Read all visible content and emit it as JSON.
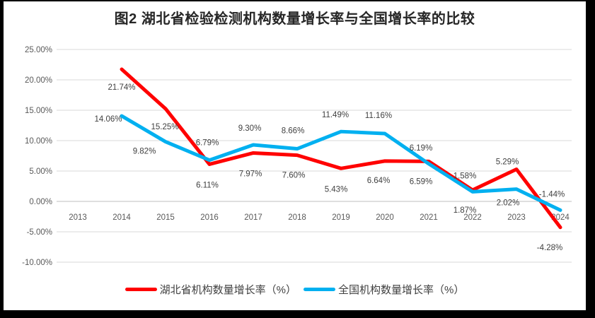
{
  "chart_data": {
    "type": "line",
    "title": "图2  湖北省检验检测机构数量增长率与全国增长率的比较",
    "x_categories": [
      "2013",
      "2014",
      "2015",
      "2016",
      "2017",
      "2018",
      "2019",
      "2020",
      "2021",
      "2022",
      "2023",
      "2024"
    ],
    "y_axis": {
      "ticks": [
        {
          "label": "25.00%",
          "value": 25
        },
        {
          "label": "20.00%",
          "value": 20
        },
        {
          "label": "15.00%",
          "value": 15
        },
        {
          "label": "10.00%",
          "value": 10
        },
        {
          "label": "5.00%",
          "value": 5
        },
        {
          "label": "0.00%",
          "value": 0
        },
        {
          "label": "-5.00%",
          "value": -5
        },
        {
          "label": "-10.00%",
          "value": -10
        }
      ]
    },
    "ylim": [
      -10,
      25
    ],
    "grid": true,
    "legend_position": "bottom",
    "series": [
      {
        "name": "湖北省机构数量增长率（%）",
        "color": "#FF0000",
        "points": [
          {
            "category": "2014",
            "value": 21.74,
            "label": "21.74%",
            "label_dx": 0,
            "label_dy": 25
          },
          {
            "category": "2015",
            "value": 15.25,
            "label": "15.25%",
            "label_dx": -1,
            "label_dy": 25
          },
          {
            "category": "2016",
            "value": 6.11,
            "label": "6.11%",
            "label_dx": -3,
            "label_dy": 29
          },
          {
            "category": "2017",
            "value": 7.97,
            "label": "7.97%",
            "label_dx": -4,
            "label_dy": 29
          },
          {
            "category": "2018",
            "value": 7.6,
            "label": "7.60%",
            "label_dx": -5,
            "label_dy": 28
          },
          {
            "category": "2019",
            "value": 5.43,
            "label": "5.43%",
            "label_dx": -7,
            "label_dy": 29
          },
          {
            "category": "2020",
            "value": 6.64,
            "label": "6.64%",
            "label_dx": -9,
            "label_dy": 27
          },
          {
            "category": "2021",
            "value": 6.59,
            "label": "6.59%",
            "label_dx": -11,
            "label_dy": 28
          },
          {
            "category": "2022",
            "value": 1.87,
            "label": "1.87%",
            "label_dx": -11,
            "label_dy": 28
          },
          {
            "category": "2023",
            "value": 5.29,
            "label": "5.29%",
            "label_dx": -13,
            "label_dy": -11
          },
          {
            "category": "2024",
            "value": -4.28,
            "label": "-4.28%",
            "label_dx": -15,
            "label_dy": 28
          }
        ]
      },
      {
        "name": "全国机构数量增长率（%）",
        "color": "#00B0F0",
        "points": [
          {
            "category": "2014",
            "value": 14.06,
            "label": "14.06%",
            "label_dx": -19,
            "label_dy": 4
          },
          {
            "category": "2015",
            "value": 9.82,
            "label": "9.82%",
            "label_dx": -30,
            "label_dy": 13
          },
          {
            "category": "2016",
            "value": 6.79,
            "label": "6.79%",
            "label_dx": -3,
            "label_dy": -25
          },
          {
            "category": "2017",
            "value": 9.3,
            "label": "9.30%",
            "label_dx": -5,
            "label_dy": -24
          },
          {
            "category": "2018",
            "value": 8.66,
            "label": "8.66%",
            "label_dx": -6,
            "label_dy": -26
          },
          {
            "category": "2019",
            "value": 11.49,
            "label": "11.49%",
            "label_dx": -8,
            "label_dy": -24
          },
          {
            "category": "2020",
            "value": 11.16,
            "label": "11.16%",
            "label_dx": -9,
            "label_dy": -26
          },
          {
            "category": "2021",
            "value": 6.19,
            "label": "6.19%",
            "label_dx": -11,
            "label_dy": -23
          },
          {
            "category": "2022",
            "value": 1.58,
            "label": "1.58%",
            "label_dx": -11,
            "label_dy": -23
          },
          {
            "category": "2023",
            "value": 2.02,
            "label": "2.02%",
            "label_dx": -12,
            "label_dy": 19
          },
          {
            "category": "2024",
            "value": -1.44,
            "label": "-1.44%",
            "label_dx": -12,
            "label_dy": -23
          }
        ]
      }
    ],
    "colors": {
      "grid": "#D9D9D9",
      "zero_line": "#BFBFBF",
      "axis_text": "#595959",
      "data_label_text": "#404040",
      "title_text": "#262626",
      "legend_text": "#404040",
      "frame": "#000000",
      "background": "#FFFFFF"
    }
  }
}
